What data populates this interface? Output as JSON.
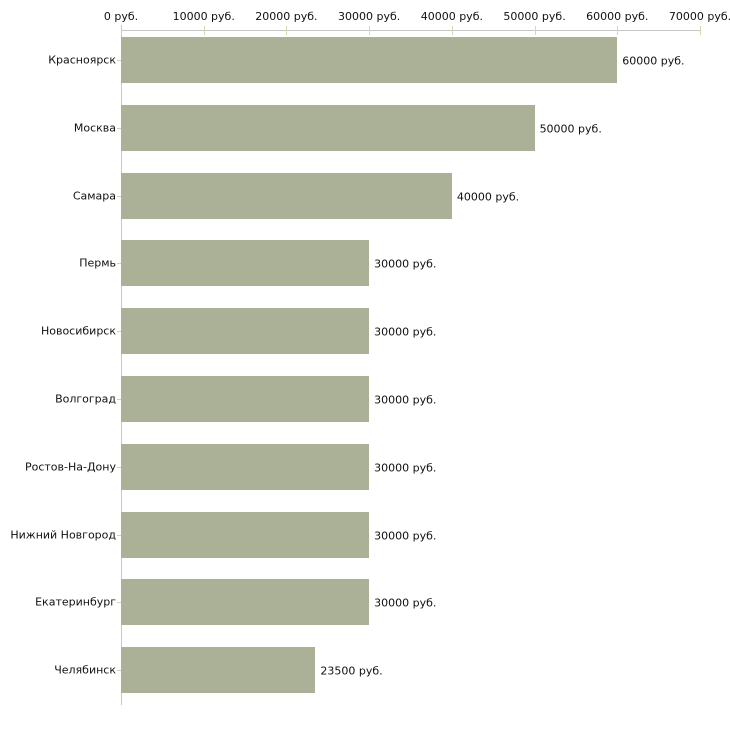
{
  "chart_data": {
    "type": "bar",
    "orientation": "horizontal",
    "title": "",
    "xlabel": "",
    "ylabel": "",
    "grid": false,
    "legend": false,
    "axis_position": "top",
    "xlim": [
      0,
      70000
    ],
    "categories": [
      "Красноярск",
      "Москва",
      "Самара",
      "Пермь",
      "Новосибирск",
      "Волгоград",
      "Ростов-На-Дону",
      "Нижний Новгород",
      "Екатеринбург",
      "Челябинск"
    ],
    "values": [
      60000,
      50000,
      40000,
      30000,
      30000,
      30000,
      30000,
      30000,
      30000,
      23500
    ],
    "value_labels": [
      "60000 руб.",
      "50000 руб.",
      "40000 руб.",
      "30000 руб.",
      "30000 руб.",
      "30000 руб.",
      "30000 руб.",
      "30000 руб.",
      "30000 руб.",
      "23500 руб."
    ],
    "x_ticks": [
      0,
      10000,
      20000,
      30000,
      40000,
      50000,
      60000,
      70000
    ],
    "x_tick_labels": [
      "0 руб.",
      "10000 руб.",
      "20000 руб.",
      "30000 руб.",
      "40000 руб.",
      "50000 руб.",
      "60000 руб.",
      "70000 руб."
    ],
    "colors": {
      "bar": "#aab197",
      "axis_line": "#c6c6c6",
      "tick_mark": "#d5d8ac",
      "category_tick": "#cfd2c2",
      "text": "#111111",
      "background": "#ffffff"
    }
  }
}
